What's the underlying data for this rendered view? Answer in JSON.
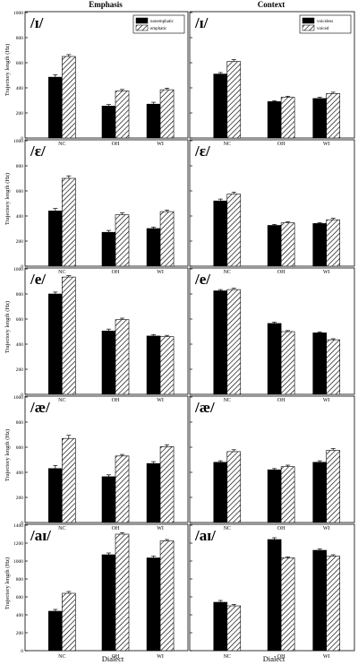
{
  "columns": [
    "Emphasis",
    "Context"
  ],
  "ylabel": "Trajectory length (Hz)",
  "xlabel": "Dialect",
  "legends": {
    "Emphasis": [
      "nonemphatic",
      "emphatic"
    ],
    "Context": [
      "voiceless",
      "voiced"
    ]
  },
  "chart_data": [
    {
      "type": "bar",
      "column": "Emphasis",
      "title": "/ɪ/",
      "categories": [
        "NC",
        "OH",
        "WI"
      ],
      "ylim": [
        0,
        1000
      ],
      "yticks": [
        0,
        200,
        400,
        600,
        800,
        1000
      ],
      "series": [
        {
          "name": "nonemphatic",
          "values": [
            485,
            255,
            270
          ]
        },
        {
          "name": "emphatic",
          "values": [
            650,
            375,
            385
          ]
        }
      ],
      "errors": [
        [
          20,
          12,
          15
        ],
        [
          15,
          12,
          12
        ]
      ]
    },
    {
      "type": "bar",
      "column": "Context",
      "title": "/ɪ/",
      "categories": [
        "NC",
        "OH",
        "WI"
      ],
      "ylim": [
        0,
        1000
      ],
      "yticks": [
        0,
        200,
        400,
        600,
        800,
        1000
      ],
      "series": [
        {
          "name": "voiceless",
          "values": [
            510,
            290,
            315
          ]
        },
        {
          "name": "voiced",
          "values": [
            610,
            325,
            355
          ]
        }
      ],
      "errors": [
        [
          12,
          8,
          10
        ],
        [
          15,
          8,
          10
        ]
      ]
    },
    {
      "type": "bar",
      "column": "Emphasis",
      "title": "/ɛ/",
      "categories": [
        "NC",
        "OH",
        "WI"
      ],
      "ylim": [
        0,
        1000
      ],
      "yticks": [
        0,
        200,
        400,
        600,
        800,
        1000
      ],
      "series": [
        {
          "name": "nonemphatic",
          "values": [
            440,
            270,
            300
          ]
        },
        {
          "name": "emphatic",
          "values": [
            700,
            410,
            435
          ]
        }
      ],
      "errors": [
        [
          20,
          15,
          12
        ],
        [
          20,
          15,
          12
        ]
      ]
    },
    {
      "type": "bar",
      "column": "Context",
      "title": "/ɛ/",
      "categories": [
        "NC",
        "OH",
        "WI"
      ],
      "ylim": [
        0,
        1000
      ],
      "yticks": [
        0,
        200,
        400,
        600,
        800,
        1000
      ],
      "series": [
        {
          "name": "voiceless",
          "values": [
            520,
            325,
            340
          ]
        },
        {
          "name": "voiced",
          "values": [
            575,
            345,
            370
          ]
        }
      ],
      "errors": [
        [
          15,
          8,
          8
        ],
        [
          15,
          8,
          12
        ]
      ]
    },
    {
      "type": "bar",
      "column": "Emphasis",
      "title": "/e/",
      "categories": [
        "NC",
        "OH",
        "WI"
      ],
      "ylim": [
        0,
        1000
      ],
      "yticks": [
        0,
        200,
        400,
        600,
        800,
        1000
      ],
      "series": [
        {
          "name": "nonemphatic",
          "values": [
            800,
            505,
            465
          ]
        },
        {
          "name": "emphatic",
          "values": [
            935,
            595,
            460
          ]
        }
      ],
      "errors": [
        [
          15,
          15,
          10
        ],
        [
          12,
          12,
          10
        ]
      ]
    },
    {
      "type": "bar",
      "column": "Context",
      "title": "/e/",
      "categories": [
        "NC",
        "OH",
        "WI"
      ],
      "ylim": [
        0,
        1000
      ],
      "yticks": [
        0,
        200,
        400,
        600,
        800,
        1000
      ],
      "series": [
        {
          "name": "voiceless",
          "values": [
            825,
            565,
            490
          ]
        },
        {
          "name": "voiced",
          "values": [
            835,
            500,
            435
          ]
        }
      ],
      "errors": [
        [
          10,
          10,
          8
        ],
        [
          10,
          8,
          8
        ]
      ]
    },
    {
      "type": "bar",
      "column": "Emphasis",
      "title": "/æ/",
      "categories": [
        "NC",
        "OH",
        "WI"
      ],
      "ylim": [
        0,
        1000
      ],
      "yticks": [
        0,
        200,
        400,
        600,
        800,
        1000
      ],
      "series": [
        {
          "name": "nonemphatic",
          "values": [
            430,
            365,
            470
          ]
        },
        {
          "name": "emphatic",
          "values": [
            670,
            530,
            605
          ]
        }
      ],
      "errors": [
        [
          25,
          15,
          15
        ],
        [
          25,
          12,
          15
        ]
      ]
    },
    {
      "type": "bar",
      "column": "Context",
      "title": "/æ/",
      "categories": [
        "NC",
        "OH",
        "WI"
      ],
      "ylim": [
        0,
        1000
      ],
      "yticks": [
        0,
        200,
        400,
        600,
        800,
        1000
      ],
      "series": [
        {
          "name": "voiceless",
          "values": [
            480,
            420,
            480
          ]
        },
        {
          "name": "voiced",
          "values": [
            565,
            445,
            575
          ]
        }
      ],
      "errors": [
        [
          12,
          10,
          12
        ],
        [
          15,
          12,
          15
        ]
      ]
    },
    {
      "type": "bar",
      "column": "Emphasis",
      "title": "/aɪ/",
      "categories": [
        "NC",
        "OH",
        "WI"
      ],
      "ylim": [
        0,
        1400
      ],
      "yticks": [
        0,
        200,
        400,
        600,
        800,
        1000,
        1200,
        1400
      ],
      "series": [
        {
          "name": "nonemphatic",
          "values": [
            440,
            1070,
            1035
          ]
        },
        {
          "name": "emphatic",
          "values": [
            640,
            1300,
            1225
          ]
        }
      ],
      "errors": [
        [
          20,
          20,
          20
        ],
        [
          20,
          15,
          15
        ]
      ]
    },
    {
      "type": "bar",
      "column": "Context",
      "title": "/aɪ/",
      "categories": [
        "NC",
        "OH",
        "WI"
      ],
      "ylim": [
        0,
        1400
      ],
      "yticks": [
        0,
        200,
        400,
        600,
        800,
        1000,
        1200,
        1400
      ],
      "series": [
        {
          "name": "voiceless",
          "values": [
            540,
            1240,
            1120
          ]
        },
        {
          "name": "voiced",
          "values": [
            500,
            1035,
            1055
          ]
        }
      ],
      "errors": [
        [
          20,
          20,
          15
        ],
        [
          15,
          12,
          15
        ]
      ]
    }
  ]
}
